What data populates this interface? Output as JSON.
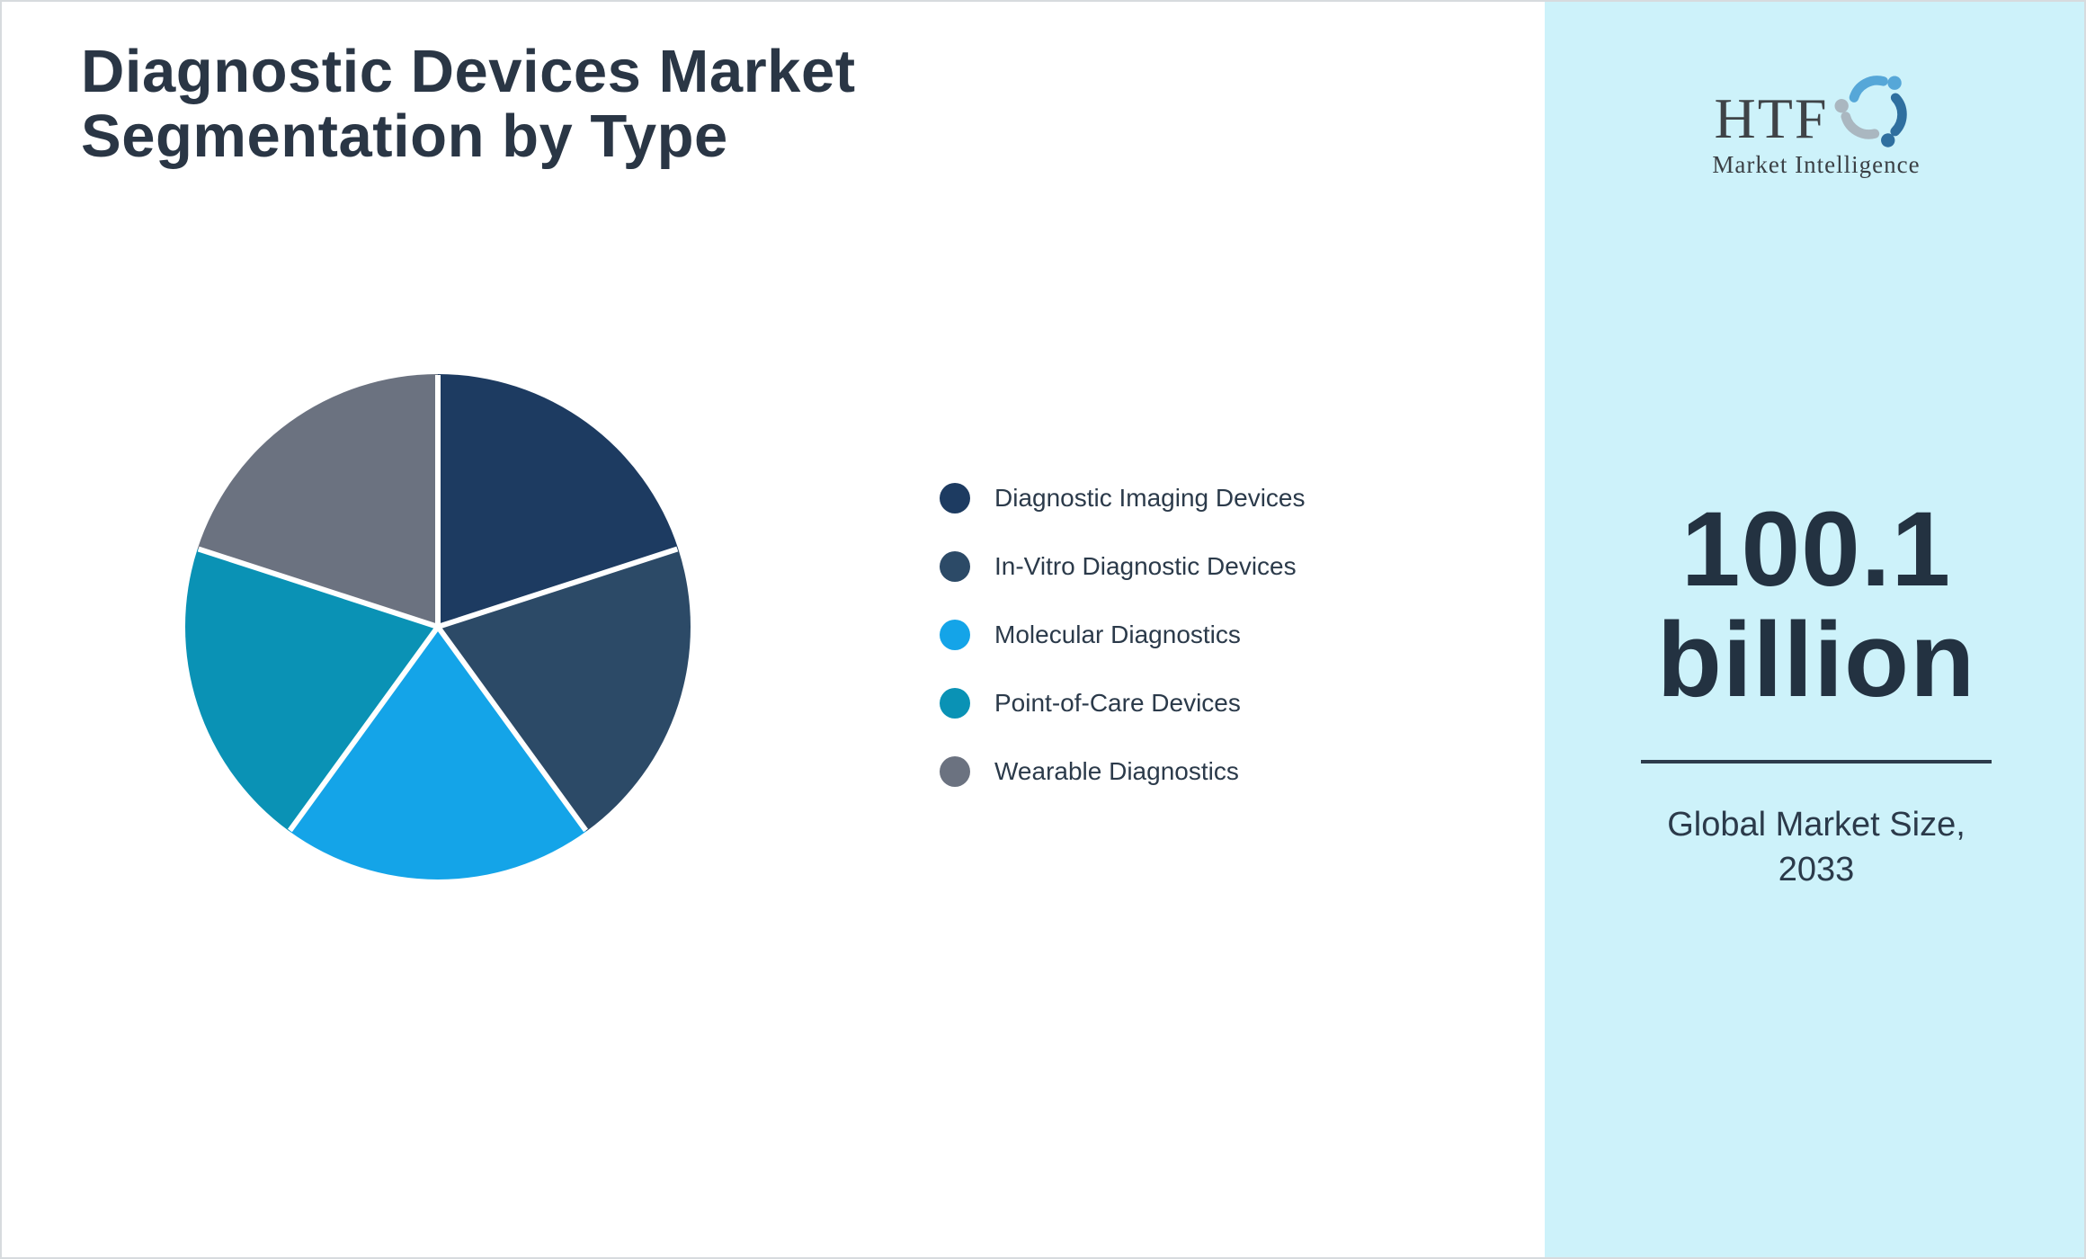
{
  "page": {
    "title_line1": "Diagnostic Devices Market",
    "title_line2": "Segmentation by Type"
  },
  "branding": {
    "logo_text": "HTF",
    "logo_subtext": "Market Intelligence"
  },
  "sidebar": {
    "background": "#cdf2fa",
    "market_size_value": "100.1",
    "market_size_unit": "billion",
    "caption_line1": "Global Market Size,",
    "caption_line2": "2033"
  },
  "chart_data": {
    "type": "pie",
    "title": "Diagnostic Devices Market Segmentation by Type",
    "categories": [
      "Diagnostic Imaging Devices",
      "In-Vitro Diagnostic Devices",
      "Molecular Diagnostics",
      "Point-of-Care Devices",
      "Wearable Diagnostics"
    ],
    "values": [
      20,
      20,
      20,
      20,
      20
    ],
    "unit": "percent (estimated from equal 72° slices)",
    "colors": [
      "#1d3b61",
      "#2c4a67",
      "#14a4e8",
      "#0a92b5",
      "#6b7280"
    ],
    "start_angle_deg": 0,
    "direction": "clockwise",
    "gap_color": "#ffffff",
    "legend_position": "right",
    "data_labels": false
  }
}
